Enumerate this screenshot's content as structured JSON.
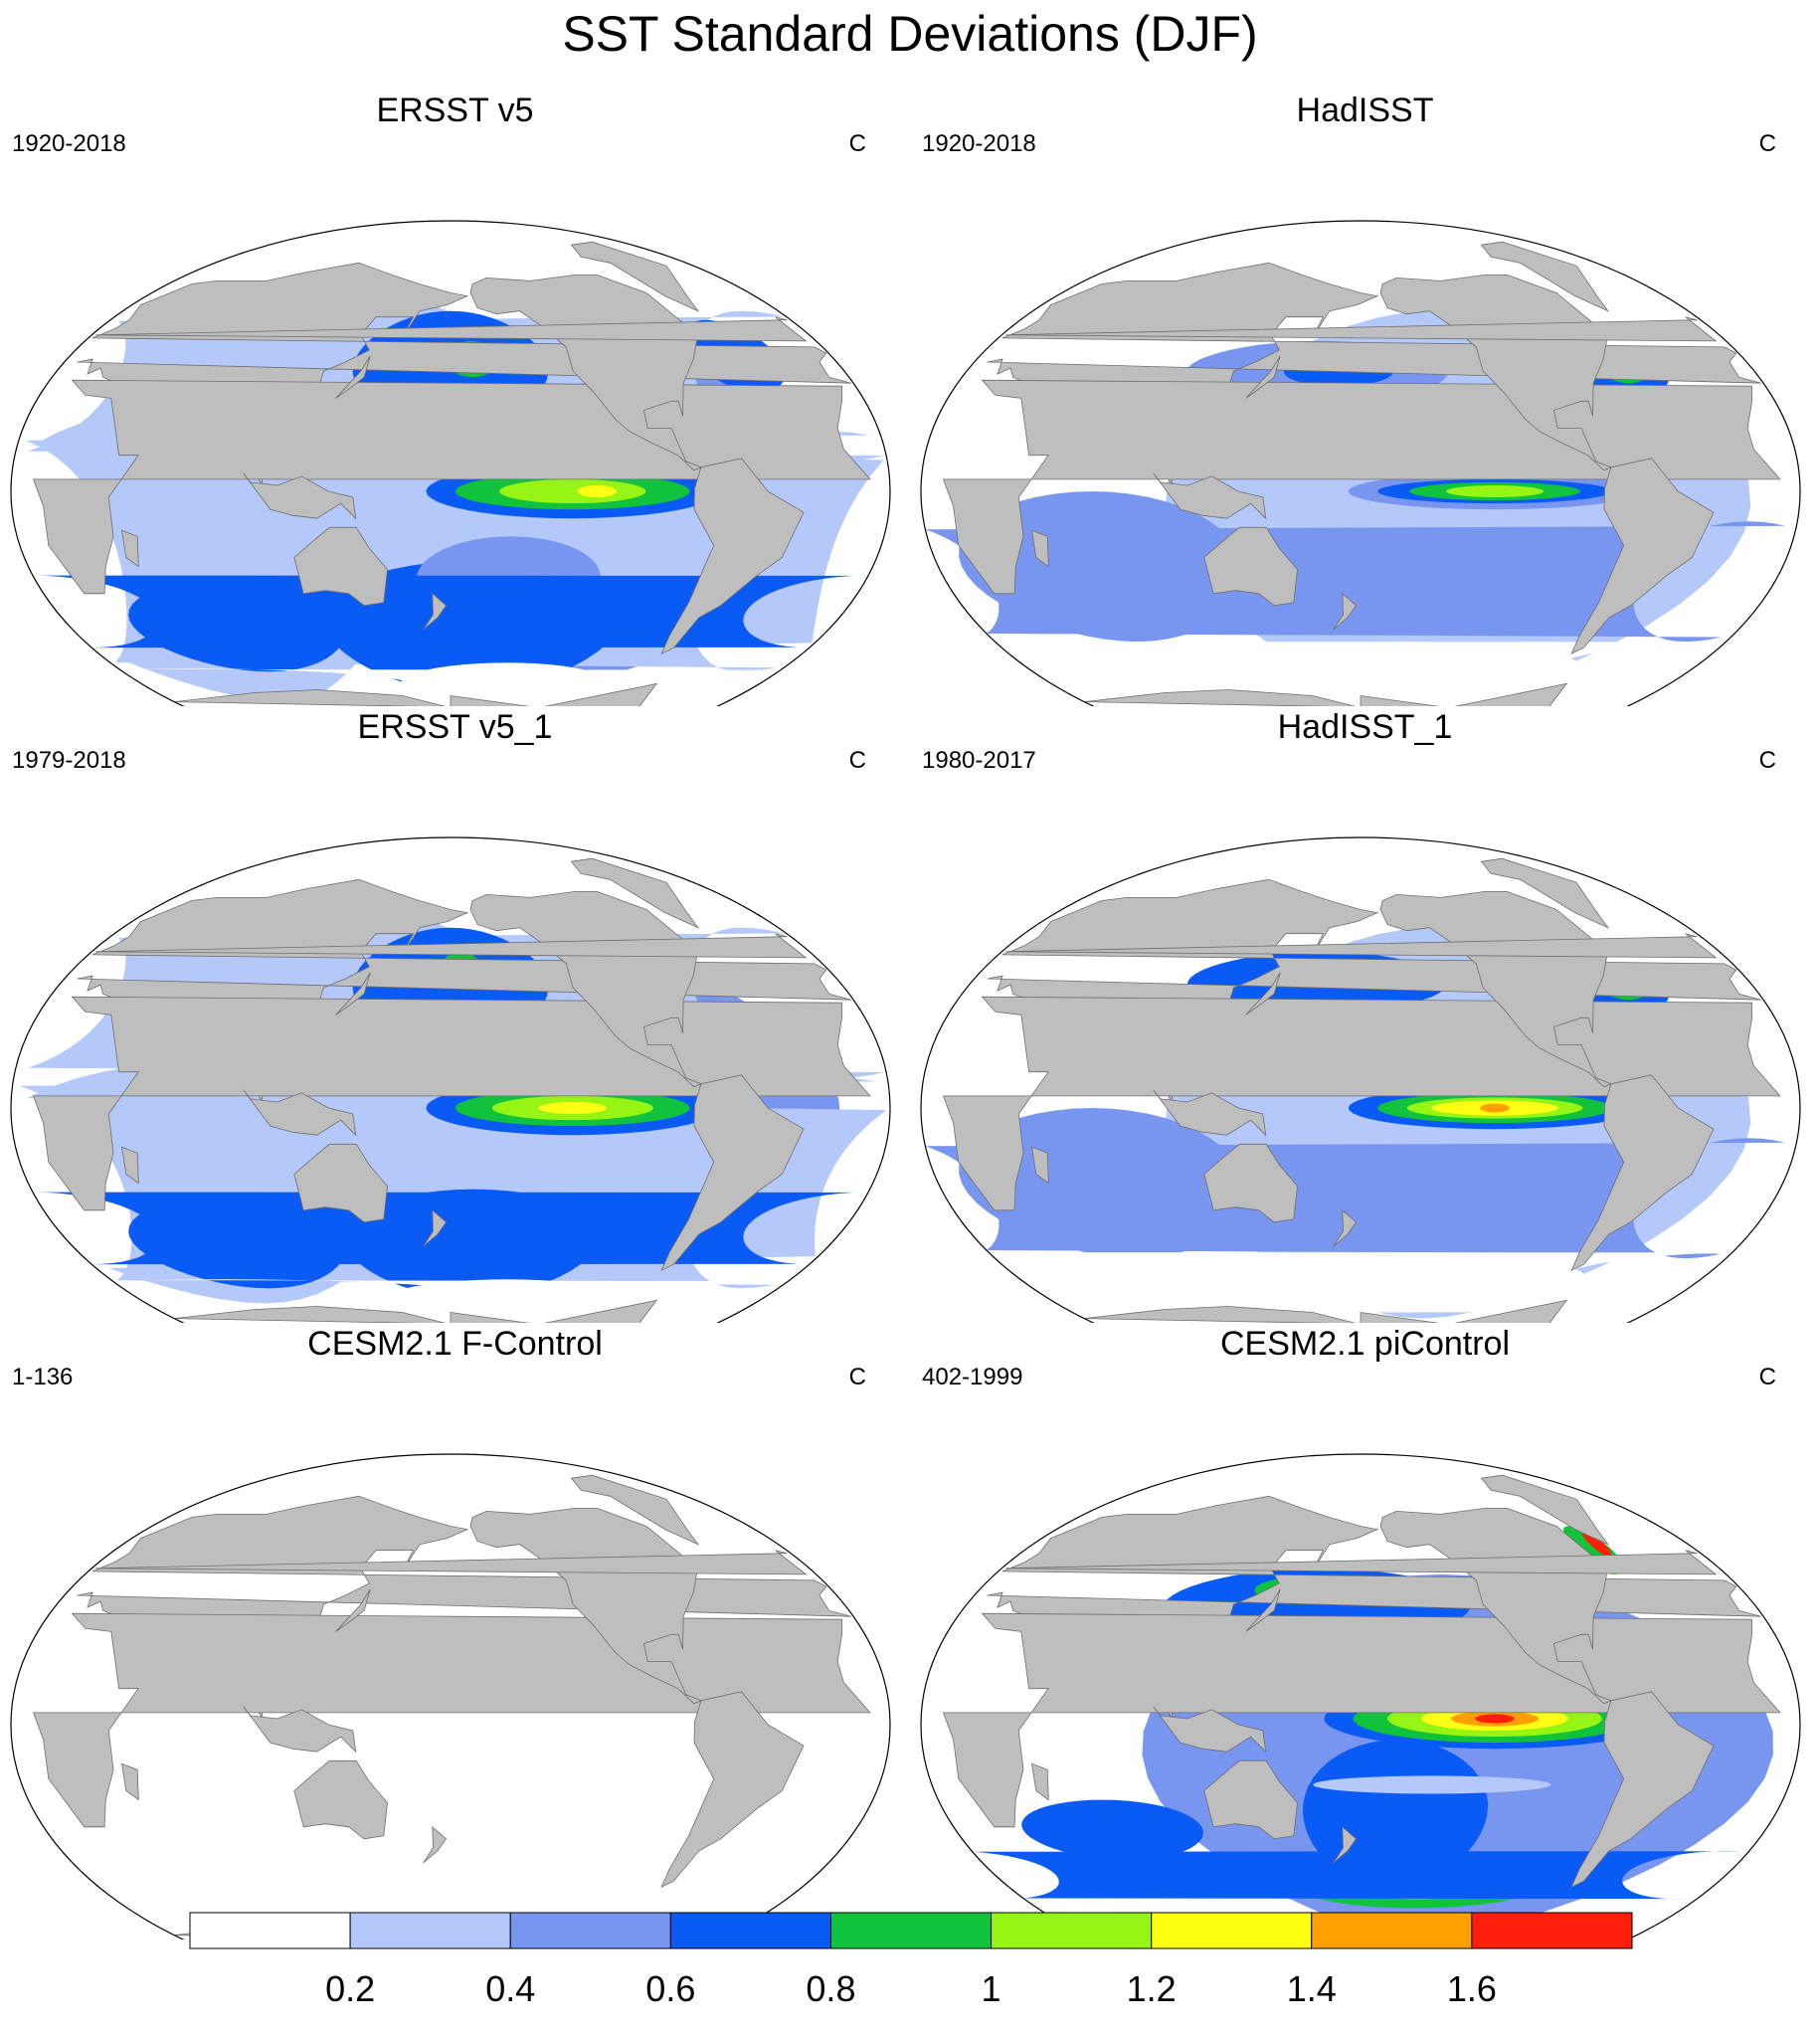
{
  "title": "SST Standard Deviations (DJF)",
  "colors": {
    "land": "#bebebe",
    "levels": [
      "#ffffff",
      "#b4c8fa",
      "#7896f0",
      "#0a5af5",
      "#10c23c",
      "#96f514",
      "#ffff14",
      "#ffa000",
      "#ff1e0a"
    ]
  },
  "panels": [
    {
      "title": "ERSST v5",
      "left": "1920-2018",
      "right": "C",
      "pattern": "obs_coarse"
    },
    {
      "title": "HadISST",
      "left": "1920-2018",
      "right": "C",
      "pattern": "obs_fine"
    },
    {
      "title": "ERSST v5_1",
      "left": "1979-2018",
      "right": "C",
      "pattern": "obs_coarse_recent"
    },
    {
      "title": "HadISST_1",
      "left": "1980-2017",
      "right": "C",
      "pattern": "obs_fine_recent"
    },
    {
      "title": "CESM2.1 F-Control",
      "left": "1-136",
      "right": "C",
      "pattern": "blank"
    },
    {
      "title": "CESM2.1 piControl",
      "left": "402-1999",
      "right": "C",
      "pattern": "model"
    }
  ],
  "colorbar": {
    "labels": [
      "0.2",
      "0.4",
      "0.6",
      "0.8",
      "1",
      "1.2",
      "1.4",
      "1.6"
    ]
  }
}
